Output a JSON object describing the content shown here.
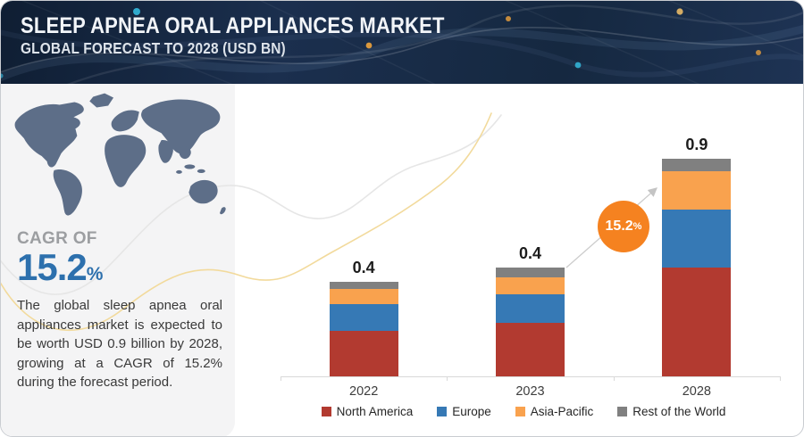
{
  "header": {
    "title": "SLEEP APNEA ORAL APPLIANCES MARKET",
    "subtitle": "GLOBAL FORECAST TO 2028 (USD BN)"
  },
  "sidebar": {
    "cagr_label": "CAGR OF",
    "cagr_value": "15.2",
    "cagr_unit": "%",
    "description": "The global sleep apnea oral appliances market is expected to be worth USD 0.9 billion by 2028, growing at a CAGR of 15.2% during the forecast period."
  },
  "chart_data": {
    "type": "bar",
    "stacked": true,
    "title": "Sleep Apnea Oral Appliances Market, USD BN",
    "categories": [
      "2022",
      "2023",
      "2028"
    ],
    "total_labels": [
      "0.4",
      "0.4",
      "0.9"
    ],
    "series": [
      {
        "name": "North America",
        "color": "#b23a30",
        "values": [
          0.19,
          0.22,
          0.45
        ]
      },
      {
        "name": "Europe",
        "color": "#3679b5",
        "values": [
          0.11,
          0.12,
          0.24
        ]
      },
      {
        "name": "Asia-Pacific",
        "color": "#f9a24e",
        "values": [
          0.06,
          0.07,
          0.16
        ]
      },
      {
        "name": "Rest of the World",
        "color": "#808080",
        "values": [
          0.03,
          0.04,
          0.05
        ]
      }
    ],
    "ylim": [
      0,
      0.95
    ],
    "grid": false,
    "legend_position": "bottom",
    "annotation": {
      "text": "15.2",
      "unit": "%",
      "color": "#f58220"
    }
  }
}
